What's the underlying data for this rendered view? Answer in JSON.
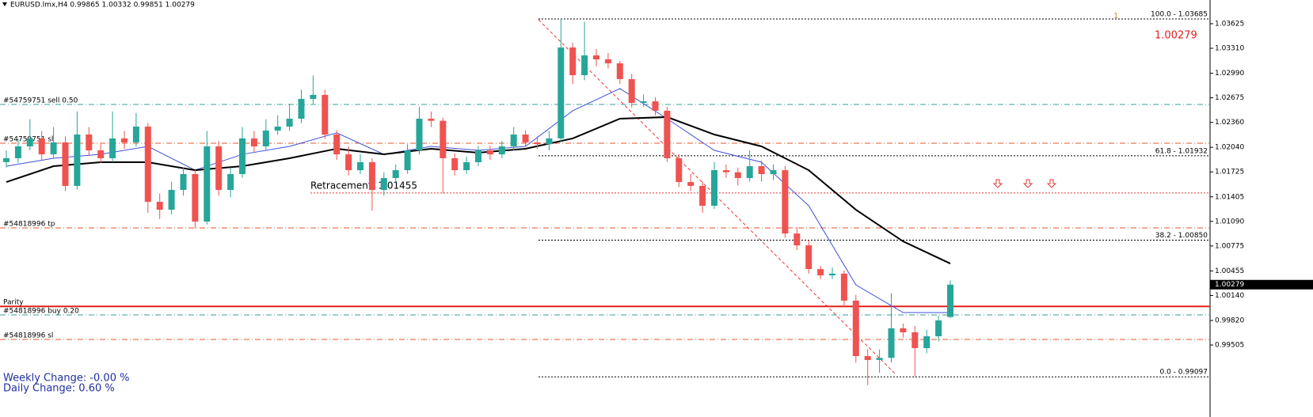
{
  "window": {
    "symbol_line": "EURUSD.lmx,H4  0.99865 1.00332 0.99851 1.00279",
    "bid_label": "1.00279",
    "corner_mark": "1"
  },
  "chart_data": {
    "type": "candlestick",
    "up_color": "#26a69a",
    "down_color": "#ef5350",
    "open": [
      1.0185,
      1.019,
      1.02052,
      1.02154,
      1.0195,
      1.02103,
      1.01545,
      1.02204,
      1.02001,
      1.019,
      1.02154,
      1.02103,
      1.02306,
      1.01341,
      1.0124,
      1.01494,
      1.01697,
      1.01088,
      1.02052,
      1.01494,
      1.01697,
      1.02154,
      1.02052,
      1.02255,
      1.02306,
      1.02407,
      1.02661,
      1.02712,
      1.02204,
      1.0195,
      1.01747,
      1.01849,
      1.01494,
      1.01646,
      1.01747,
      1.02001,
      1.02407,
      1.0238,
      1.019,
      1.01747,
      1.01849,
      1.02001,
      1.0195,
      1.02052,
      1.02204,
      1.02103,
      1.0208,
      1.02154,
      1.0332,
      1.02965,
      1.03219,
      1.03168,
      1.03117,
      1.02915,
      1.0261,
      1.0263,
      1.02509,
      1.019,
      1.01595,
      1.01545,
      1.01291,
      1.01747,
      1.0172,
      1.01646,
      1.01798,
      1.01697,
      1.01747,
      1.00935,
      1.00783,
      1.00479,
      1.00398,
      1.0042,
      1.00074,
      0.99363,
      0.99313,
      0.9934,
      0.99719,
      0.99668,
      0.99465,
      0.99617,
      0.99865
    ],
    "high": [
      1.02,
      1.0215,
      1.024,
      1.0225,
      1.023,
      1.0218,
      1.025,
      1.023,
      1.0208,
      1.025,
      1.0225,
      1.0248,
      1.0235,
      1.0145,
      1.016,
      1.0178,
      1.0175,
      1.0225,
      1.0212,
      1.0178,
      1.023,
      1.0225,
      1.024,
      1.0245,
      1.026,
      1.0278,
      1.0296,
      1.0278,
      1.0226,
      1.0205,
      1.0195,
      1.019,
      1.0172,
      1.0182,
      1.0208,
      1.0256,
      1.025,
      1.0242,
      1.0196,
      1.0192,
      1.0206,
      1.0206,
      1.0212,
      1.023,
      1.0226,
      1.0218,
      1.0225,
      1.03685,
      1.0338,
      1.0365,
      1.033,
      1.0325,
      1.0315,
      1.0298,
      1.0272,
      1.0268,
      1.0256,
      1.0195,
      1.017,
      1.016,
      1.0185,
      1.0182,
      1.0178,
      1.02,
      1.0187,
      1.0182,
      1.018,
      1.0102,
      1.0085,
      1.0052,
      1.005,
      1.0046,
      1.0015,
      0.9945,
      0.9945,
      1.0017,
      0.9978,
      0.9975,
      0.997,
      0.9988,
      1.00332
    ],
    "low": [
      1.0178,
      1.0184,
      1.02,
      1.0188,
      1.019,
      1.0148,
      1.015,
      1.0194,
      1.0184,
      1.0185,
      1.0202,
      1.0205,
      1.012,
      1.0112,
      1.0118,
      1.0142,
      1.01,
      1.0105,
      1.0142,
      1.014,
      1.0165,
      1.0198,
      1.02,
      1.022,
      1.0225,
      1.0235,
      1.026,
      1.0215,
      1.0188,
      1.0168,
      1.017,
      1.0123,
      1.0142,
      1.0158,
      1.017,
      1.0195,
      1.023,
      1.0145,
      1.0168,
      1.017,
      1.018,
      1.0188,
      1.019,
      1.02,
      1.0205,
      1.0202,
      1.02,
      1.021,
      1.0285,
      1.029,
      1.0308,
      1.0305,
      1.0285,
      1.0255,
      1.0256,
      1.0245,
      1.0185,
      1.0153,
      1.0148,
      1.012,
      1.0125,
      1.0165,
      1.0155,
      1.016,
      1.016,
      1.0162,
      1.0088,
      1.0072,
      1.0042,
      1.0035,
      1.0035,
      1.0,
      0.9928,
      0.9899,
      0.9915,
      0.9928,
      0.996,
      0.991,
      0.994,
      0.9955,
      0.99851
    ],
    "close": [
      1.019,
      1.02052,
      1.02154,
      1.0195,
      1.02103,
      1.01545,
      1.02204,
      1.02001,
      1.019,
      1.02154,
      1.02103,
      1.02306,
      1.01341,
      1.0124,
      1.01494,
      1.01697,
      1.01088,
      1.02052,
      1.01494,
      1.01697,
      1.02154,
      1.02052,
      1.02255,
      1.02306,
      1.02407,
      1.02661,
      1.02712,
      1.02204,
      1.0195,
      1.01747,
      1.01849,
      1.01494,
      1.01646,
      1.01747,
      1.02001,
      1.02407,
      1.0238,
      1.019,
      1.01747,
      1.01849,
      1.02001,
      1.0195,
      1.02052,
      1.02204,
      1.02103,
      1.0208,
      1.02154,
      1.0332,
      1.02965,
      1.03219,
      1.03168,
      1.03117,
      1.02915,
      1.0261,
      1.0263,
      1.02509,
      1.019,
      1.01595,
      1.01545,
      1.01291,
      1.01747,
      1.0172,
      1.01646,
      1.01798,
      1.01697,
      1.01747,
      1.00935,
      1.00783,
      1.00479,
      1.00398,
      1.0042,
      1.00074,
      0.99363,
      0.99313,
      0.9934,
      0.99719,
      0.99668,
      0.99465,
      0.99617,
      0.99821,
      1.00279
    ],
    "moving_averages": [
      {
        "color": "#3f51d8",
        "x": [
          0,
          4,
          8,
          12,
          16,
          20,
          24,
          28,
          32,
          36,
          40,
          44,
          48,
          52,
          56,
          60,
          64,
          68,
          72,
          76,
          80
        ],
        "values": [
          1.01798,
          1.019,
          1.0195,
          1.02052,
          1.01747,
          1.0195,
          1.02052,
          1.02225,
          1.0195,
          1.02052,
          1.02001,
          1.02052,
          1.02509,
          1.02793,
          1.02407,
          1.02001,
          1.01849,
          1.01291,
          1.00276,
          0.99921,
          0.99921
        ]
      },
      {
        "color": "#000000",
        "x": [
          0,
          4,
          8,
          12,
          16,
          20,
          24,
          28,
          32,
          36,
          40,
          44,
          48,
          52,
          56,
          60,
          64,
          68,
          72,
          76,
          80
        ],
        "values": [
          1.01595,
          1.01798,
          1.01849,
          1.01849,
          1.01747,
          1.01798,
          1.019,
          1.02022,
          1.0195,
          1.02022,
          1.01971,
          1.02022,
          1.02154,
          1.02407,
          1.02428,
          1.02204,
          1.02052,
          1.01747,
          1.0124,
          1.00834,
          1.0055
        ]
      }
    ],
    "ylim": [
      0.98582,
      1.03929
    ],
    "yticks": [
      1.03625,
      {
        "value": 1.0331,
        "label": "1.03310"
      },
      {
        "value": 1.0299,
        "label": "1.02990"
      },
      1.02675,
      {
        "value": 1.0236,
        "label": "1.02360"
      },
      {
        "value": 1.0204,
        "label": "1.02040"
      },
      1.01725,
      1.01405,
      {
        "value": 1.0109,
        "label": "1.01090"
      },
      1.00775,
      1.00455,
      {
        "value": 1.0014,
        "label": "1.00140"
      },
      {
        "value": 0.9982,
        "label": "0.99820"
      },
      0.99505
    ],
    "current_price": 1.00279,
    "levels": [
      {
        "label": "#54759751 sell 0.50",
        "value": 1.0259,
        "color": "#3a9f98",
        "style": "dashdot"
      },
      {
        "label": "#54759751 sl",
        "value": 1.02093,
        "color": "#e4572e",
        "style": "dashdot"
      },
      {
        "label": "#54818996 tp",
        "value": 1.01007,
        "color": "#e4572e",
        "style": "dashdot"
      },
      {
        "label": "Parity",
        "value": 1.0,
        "color": "#e02020",
        "style": "solid"
      },
      {
        "label": "#54818996 buy 0.20",
        "value": 0.99891,
        "color": "#3a9f98",
        "style": "dashdot"
      },
      {
        "label": "#54818996 sl",
        "value": 0.99576,
        "color": "#e4572e",
        "style": "dashdot"
      }
    ],
    "retracement": {
      "label": "Retracement: 1.01455",
      "value": 1.01455
    },
    "fibonacci": [
      {
        "label": "100.0 - 1.03685",
        "value": 1.03685
      },
      {
        "label": "61.8 - 1.01932",
        "value": 1.01932
      },
      {
        "label": "38.2 - 1.00850",
        "value": 1.0085
      },
      {
        "label": "0.0 - 0.99097",
        "value": 0.99097
      }
    ]
  },
  "footer": [
    "Weekly Change: -0.00 %",
    "Daily Change: 0.60 %"
  ]
}
